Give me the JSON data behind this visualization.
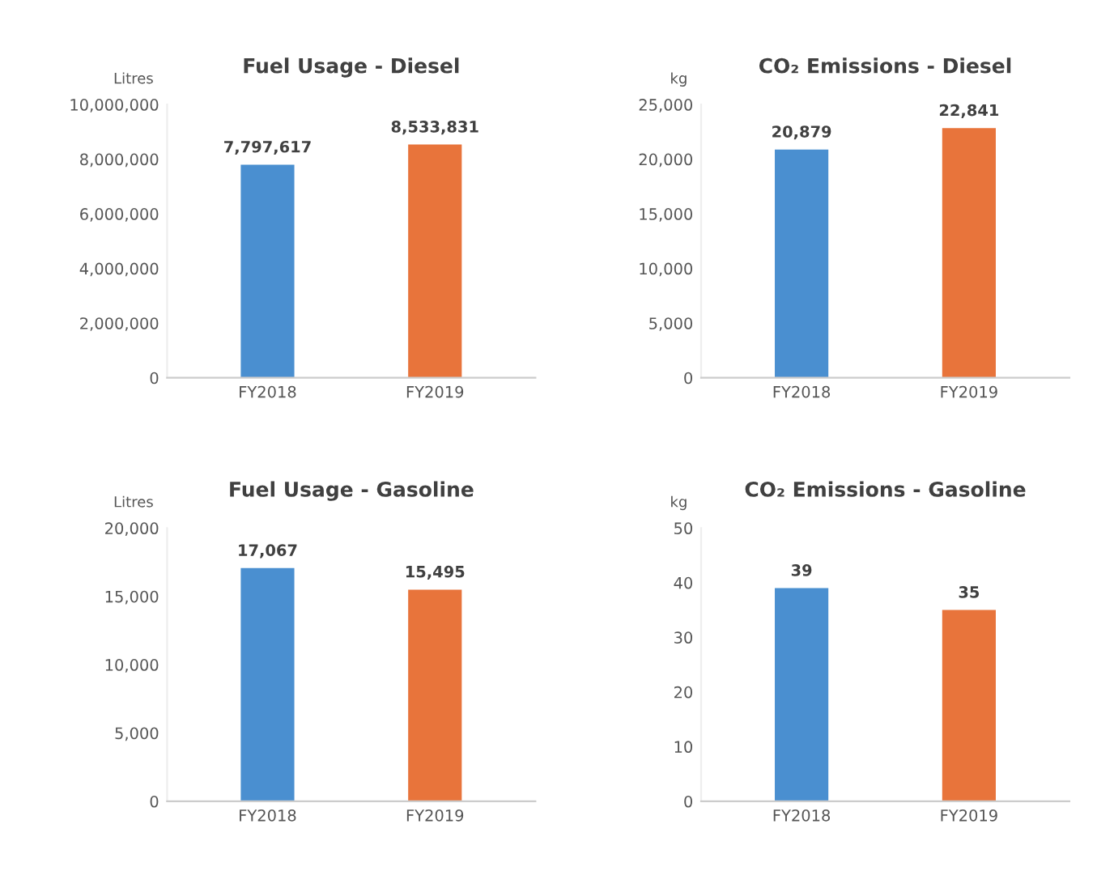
{
  "chart_data": [
    {
      "type": "bar",
      "title": "Fuel Usage - Diesel",
      "ylabel": "Litres",
      "categories": [
        "FY2018",
        "FY2019"
      ],
      "values": [
        7797617,
        8533831
      ],
      "colors": [
        "#4a8fd0",
        "#e8743b"
      ],
      "data_labels": true,
      "value_labels": [
        "7,797,617",
        "8,533,831"
      ],
      "ylim": [
        0,
        10000000
      ],
      "yticks": [
        0,
        {
          "value": 2000000,
          "label": "2,000,000"
        },
        {
          "value": 4000000,
          "label": "4,000,000"
        },
        {
          "value": 6000000,
          "label": "6,000,000"
        },
        {
          "value": 8000000,
          "label": "8,000,000"
        },
        {
          "value": 10000000,
          "label": "10,000,000"
        }
      ],
      "grid": false,
      "legend": false
    },
    {
      "type": "bar",
      "title": "CO₂ Emissions - Diesel",
      "ylabel": "kg",
      "categories": [
        "FY2018",
        "FY2019"
      ],
      "values": [
        20879,
        22841
      ],
      "colors": [
        "#4a8fd0",
        "#e8743b"
      ],
      "data_labels": true,
      "value_labels": [
        "20,879",
        "22,841"
      ],
      "ylim": [
        0,
        25000
      ],
      "yticks": [
        0,
        {
          "value": 5000,
          "label": "5,000"
        },
        {
          "value": 10000,
          "label": "10,000"
        },
        {
          "value": 15000,
          "label": "15,000"
        },
        {
          "value": 20000,
          "label": "20,000"
        },
        {
          "value": 25000,
          "label": "25,000"
        }
      ],
      "grid": false,
      "legend": false
    },
    {
      "type": "bar",
      "title": "Fuel Usage - Gasoline",
      "ylabel": "Litres",
      "categories": [
        "FY2018",
        "FY2019"
      ],
      "values": [
        17067,
        15495
      ],
      "colors": [
        "#4a8fd0",
        "#e8743b"
      ],
      "data_labels": true,
      "value_labels": [
        "17,067",
        "15,495"
      ],
      "ylim": [
        0,
        20000
      ],
      "yticks": [
        0,
        {
          "value": 5000,
          "label": "5,000"
        },
        {
          "value": 10000,
          "label": "10,000"
        },
        {
          "value": 15000,
          "label": "15,000"
        },
        {
          "value": 20000,
          "label": "20,000"
        }
      ],
      "grid": false,
      "legend": false
    },
    {
      "type": "bar",
      "title": "CO₂ Emissions - Gasoline",
      "ylabel": "kg",
      "categories": [
        "FY2018",
        "FY2019"
      ],
      "values": [
        39,
        35
      ],
      "colors": [
        "#4a8fd0",
        "#e8743b"
      ],
      "data_labels": true,
      "ylim": [
        0,
        50
      ],
      "yticks": [
        0,
        10,
        20,
        30,
        40,
        50
      ],
      "grid": false,
      "legend": false
    }
  ]
}
